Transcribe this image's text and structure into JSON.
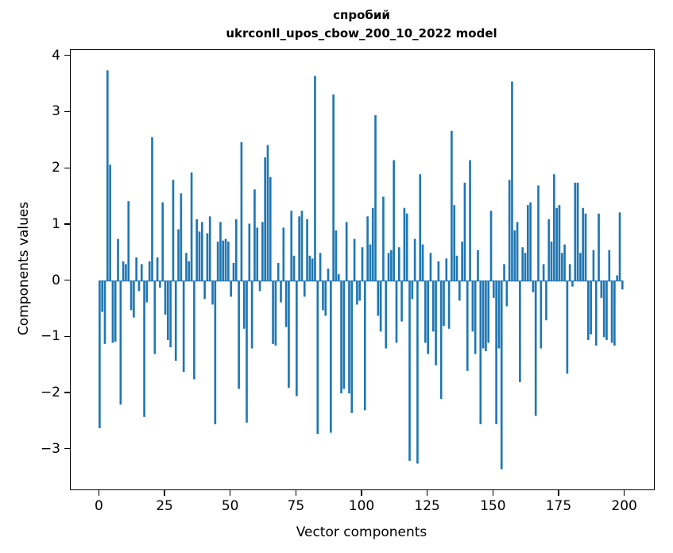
{
  "figure": {
    "title_line1": "спробий",
    "title_line2": "ukrconll_upos_cbow_200_10_2022 model",
    "xlabel": "Vector components",
    "ylabel": "Components values"
  },
  "chart_data": {
    "type": "bar",
    "title": "спробий\nukrconll_upos_cbow_200_10_2022 model",
    "xlabel": "Vector components",
    "ylabel": "Components values",
    "bar_color": "#1f77b4",
    "grid": false,
    "legend_position": "none",
    "xlim": [
      -11,
      211
    ],
    "ylim": [
      -3.71,
      4.11
    ],
    "x_ticks": [
      0,
      25,
      50,
      75,
      100,
      125,
      150,
      175,
      200
    ],
    "y_ticks": [
      -3,
      -2,
      -1,
      0,
      1,
      2,
      3,
      4
    ],
    "y_tick_labels": [
      "−3",
      "−2",
      "−1",
      "0",
      "1",
      "2",
      "3",
      "4"
    ],
    "bar_width": 0.8,
    "values": [
      -2.62,
      -0.55,
      -1.12,
      3.75,
      2.07,
      -1.1,
      -1.08,
      0.75,
      -2.2,
      0.35,
      0.3,
      1.42,
      -0.52,
      -0.65,
      0.42,
      -0.18,
      0.3,
      -2.42,
      -0.38,
      0.35,
      2.56,
      -1.3,
      0.42,
      -0.12,
      1.4,
      -0.6,
      -1.05,
      -1.18,
      1.8,
      -1.42,
      0.92,
      1.56,
      -1.62,
      0.5,
      0.35,
      1.93,
      -1.75,
      1.1,
      0.88,
      1.05,
      -0.32,
      0.85,
      1.15,
      -0.42,
      -2.55,
      0.7,
      1.05,
      0.72,
      0.75,
      0.7,
      -0.28,
      0.32,
      1.1,
      -1.92,
      2.47,
      -0.85,
      -2.52,
      1.02,
      -1.2,
      1.63,
      0.95,
      -0.18,
      1.05,
      2.2,
      2.42,
      1.85,
      -1.12,
      -1.15,
      0.32,
      -0.38,
      0.95,
      -0.82,
      -1.9,
      1.25,
      0.45,
      -2.05,
      1.15,
      1.25,
      -0.28,
      1.1,
      0.45,
      0.4,
      3.65,
      -2.72,
      0.5,
      -0.52,
      -0.62,
      0.22,
      -2.7,
      3.32,
      0.9,
      0.12,
      -2.0,
      -1.92,
      1.05,
      -2.0,
      -2.35,
      0.75,
      -0.42,
      -0.35,
      0.6,
      -2.3,
      1.15,
      0.65,
      1.3,
      2.95,
      -0.62,
      -0.9,
      1.5,
      -1.2,
      0.5,
      0.55,
      2.15,
      -1.1,
      0.6,
      -0.72,
      1.3,
      1.2,
      -3.2,
      -0.32,
      0.75,
      -3.25,
      1.9,
      0.65,
      -1.1,
      -1.3,
      0.5,
      -0.9,
      -1.5,
      0.35,
      -2.1,
      -0.8,
      0.4,
      -0.85,
      2.67,
      1.35,
      0.45,
      -0.35,
      0.7,
      1.75,
      -1.6,
      2.15,
      -0.9,
      -1.3,
      0.55,
      -2.55,
      -1.2,
      -1.25,
      -1.1,
      1.25,
      -0.3,
      -2.55,
      -1.2,
      -3.35,
      0.3,
      -0.45,
      1.8,
      3.55,
      0.9,
      1.05,
      -1.8,
      0.6,
      0.5,
      1.35,
      1.4,
      -0.2,
      -2.4,
      1.7,
      -1.2,
      0.3,
      -0.7,
      1.1,
      0.7,
      1.9,
      1.3,
      1.35,
      0.5,
      0.65,
      -1.65,
      0.3,
      -0.1,
      1.75,
      1.75,
      0.5,
      1.3,
      1.2,
      -1.05,
      -0.95,
      0.55,
      -1.15,
      1.2,
      -0.3,
      -1.0,
      -1.05,
      0.55,
      -1.1,
      -1.15,
      0.1,
      1.22,
      -0.15
    ]
  }
}
